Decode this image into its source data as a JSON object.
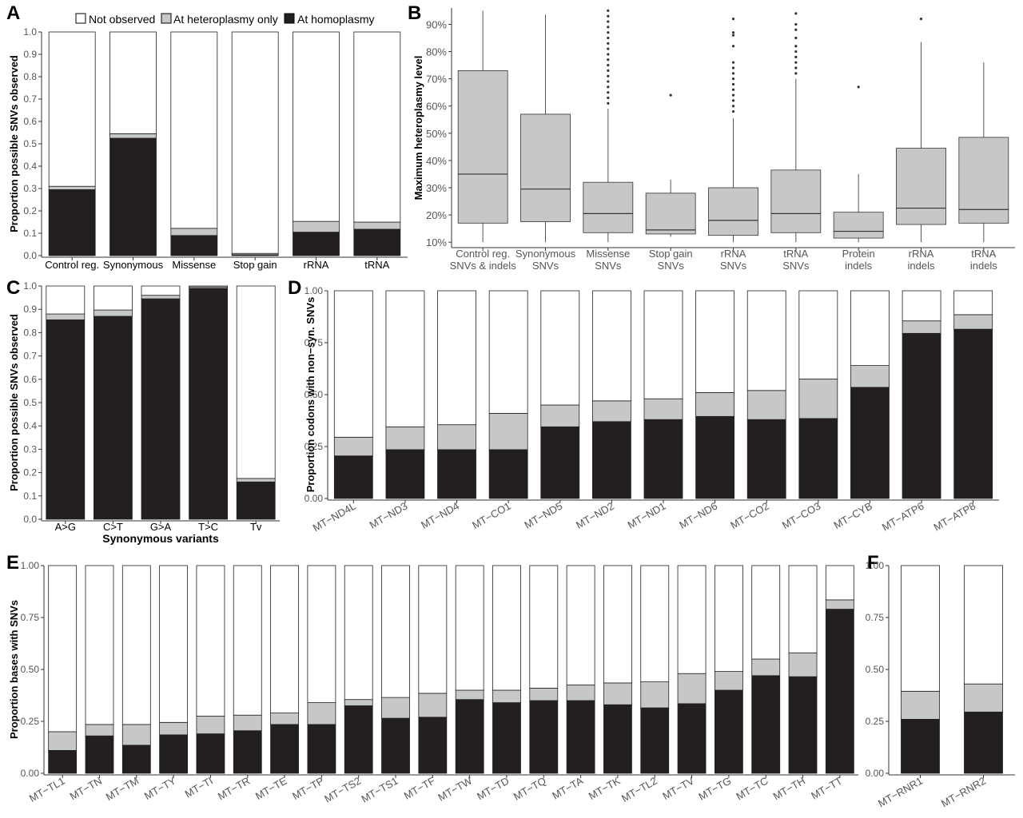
{
  "colors": {
    "not_observed": "#ffffff",
    "heteroplasmy": "#c6c7c9",
    "homoplasmy": "#231f20",
    "box_fill": "#c6c7c9",
    "axis": "#333333",
    "tick_text": "#555555"
  },
  "legend": {
    "items": [
      {
        "label": "Not observed",
        "color": "#ffffff"
      },
      {
        "label": "At heteroplasmy only",
        "color": "#c6c7c9"
      },
      {
        "label": "At homoplasmy",
        "color": "#231f20"
      }
    ]
  },
  "chart_data": [
    {
      "panel": "A",
      "type": "bar",
      "stacked": true,
      "ylabel": "Proportion possible SNVs observed",
      "xlabel": "",
      "ylim": [
        0,
        1
      ],
      "yticks": [
        "0.0",
        "0.1",
        "0.2",
        "0.3",
        "0.4",
        "0.5",
        "0.6",
        "0.7",
        "0.8",
        "0.9",
        "1.0"
      ],
      "categories": [
        "Control reg.",
        "Synonymous",
        "Missense",
        "Stop gain",
        "rRNA",
        "tRNA"
      ],
      "series": [
        {
          "name": "At homoplasmy",
          "values": [
            0.295,
            0.525,
            0.09,
            0.004,
            0.105,
            0.118
          ]
        },
        {
          "name": "At heteroplasmy only",
          "values": [
            0.015,
            0.02,
            0.032,
            0.006,
            0.048,
            0.032
          ]
        },
        {
          "name": "Not observed",
          "values": [
            0.69,
            0.455,
            0.878,
            0.99,
            0.847,
            0.85
          ]
        }
      ]
    },
    {
      "panel": "B",
      "type": "box",
      "ylabel": "Maximum heteroplasmy level",
      "xlabel": "",
      "ylim": [
        0.08,
        0.96
      ],
      "yticks": [
        "10%",
        "20%",
        "30%",
        "40%",
        "50%",
        "60%",
        "70%",
        "80%",
        "90%"
      ],
      "categories": [
        "Control reg.\nSNVs & indels",
        "Synonymous\nSNVs",
        "Missense\nSNVs",
        "Stop gain\nSNVs",
        "rRNA\nSNVs",
        "tRNA\nSNVs",
        "Protein\nindels",
        "rRNA\nindels",
        "tRNA\nindels"
      ],
      "boxes": [
        {
          "min": 0.1,
          "q1": 0.17,
          "median": 0.35,
          "q3": 0.73,
          "max": 0.95,
          "outliers": []
        },
        {
          "min": 0.1,
          "q1": 0.175,
          "median": 0.295,
          "q3": 0.57,
          "max": 0.935,
          "outliers": []
        },
        {
          "min": 0.1,
          "q1": 0.135,
          "median": 0.205,
          "q3": 0.32,
          "max": 0.59,
          "outliers": [
            0.61,
            0.63,
            0.65,
            0.67,
            0.69,
            0.71,
            0.73,
            0.75,
            0.77,
            0.79,
            0.81,
            0.83,
            0.85,
            0.87,
            0.89,
            0.91,
            0.93,
            0.95
          ]
        },
        {
          "min": 0.12,
          "q1": 0.13,
          "median": 0.145,
          "q3": 0.28,
          "max": 0.33,
          "outliers": [
            0.64
          ]
        },
        {
          "min": 0.1,
          "q1": 0.125,
          "median": 0.18,
          "q3": 0.3,
          "max": 0.555,
          "outliers": [
            0.58,
            0.6,
            0.62,
            0.64,
            0.66,
            0.68,
            0.7,
            0.72,
            0.74,
            0.76,
            0.82,
            0.86,
            0.87,
            0.92
          ]
        },
        {
          "min": 0.1,
          "q1": 0.135,
          "median": 0.205,
          "q3": 0.365,
          "max": 0.7,
          "outliers": [
            0.72,
            0.74,
            0.76,
            0.78,
            0.8,
            0.82,
            0.85,
            0.88,
            0.9,
            0.94
          ]
        },
        {
          "min": 0.1,
          "q1": 0.115,
          "median": 0.14,
          "q3": 0.21,
          "max": 0.35,
          "outliers": [
            0.67
          ]
        },
        {
          "min": 0.1,
          "q1": 0.165,
          "median": 0.225,
          "q3": 0.445,
          "max": 0.835,
          "outliers": [
            0.92
          ]
        },
        {
          "min": 0.1,
          "q1": 0.17,
          "median": 0.22,
          "q3": 0.485,
          "max": 0.76,
          "outliers": []
        }
      ]
    },
    {
      "panel": "C",
      "type": "bar",
      "stacked": true,
      "ylabel": "Proportion possible SNVs observed",
      "xlabel": "Synonymous variants",
      "ylim": [
        0,
        1
      ],
      "yticks": [
        "0.0",
        "0.1",
        "0.2",
        "0.3",
        "0.4",
        "0.5",
        "0.6",
        "0.7",
        "0.8",
        "0.9",
        "1.0"
      ],
      "categories": [
        "A>G",
        "C>T",
        "G>A",
        "T>C",
        "Tv"
      ],
      "series": [
        {
          "name": "At homoplasmy",
          "values": [
            0.855,
            0.87,
            0.945,
            0.99,
            0.16
          ]
        },
        {
          "name": "At heteroplasmy only",
          "values": [
            0.025,
            0.027,
            0.015,
            0.006,
            0.015
          ]
        },
        {
          "name": "Not observed",
          "values": [
            0.12,
            0.103,
            0.04,
            0.004,
            0.825
          ]
        }
      ]
    },
    {
      "panel": "D",
      "type": "bar",
      "stacked": true,
      "ylabel": "Proportion codons with non−syn. SNVs",
      "xlabel": "",
      "ylim": [
        0,
        1
      ],
      "yticks": [
        "0.00",
        "0.25",
        "0.50",
        "0.75",
        "1.00"
      ],
      "categories": [
        "MT−ND4L",
        "MT−ND3",
        "MT−ND4",
        "MT−CO1",
        "MT−ND5",
        "MT−ND2",
        "MT−ND1",
        "MT−ND6",
        "MT−CO2",
        "MT−CO3",
        "MT−CYB",
        "MT−ATP6",
        "MT−ATP8"
      ],
      "series": [
        {
          "name": "At homoplasmy",
          "values": [
            0.205,
            0.235,
            0.235,
            0.235,
            0.345,
            0.37,
            0.38,
            0.395,
            0.38,
            0.385,
            0.535,
            0.795,
            0.815
          ]
        },
        {
          "name": "At heteroplasmy only",
          "values": [
            0.09,
            0.11,
            0.12,
            0.175,
            0.105,
            0.1,
            0.1,
            0.115,
            0.14,
            0.19,
            0.105,
            0.06,
            0.07
          ]
        },
        {
          "name": "Not observed",
          "values": [
            0.705,
            0.655,
            0.645,
            0.59,
            0.55,
            0.53,
            0.52,
            0.49,
            0.48,
            0.425,
            0.36,
            0.145,
            0.115
          ]
        }
      ]
    },
    {
      "panel": "E",
      "type": "bar",
      "stacked": true,
      "ylabel": "Proportion bases with SNVs",
      "xlabel": "",
      "ylim": [
        0,
        1
      ],
      "yticks": [
        "0.00",
        "0.25",
        "0.50",
        "0.75",
        "1.00"
      ],
      "categories": [
        "MT−TL1",
        "MT−TN",
        "MT−TM",
        "MT−TY",
        "MT−TI",
        "MT−TR",
        "MT−TE",
        "MT−TP",
        "MT−TS2",
        "MT−TS1",
        "MT−TF",
        "MT−TW",
        "MT−TD",
        "MT−TQ",
        "MT−TA",
        "MT−TK",
        "MT−TL2",
        "MT−TV",
        "MT−TG",
        "MT−TC",
        "MT−TH",
        "MT−TT"
      ],
      "series": [
        {
          "name": "At homoplasmy",
          "values": [
            0.11,
            0.18,
            0.135,
            0.185,
            0.19,
            0.205,
            0.235,
            0.235,
            0.325,
            0.265,
            0.27,
            0.355,
            0.34,
            0.35,
            0.35,
            0.33,
            0.315,
            0.335,
            0.4,
            0.47,
            0.465,
            0.79
          ]
        },
        {
          "name": "At heteroplasmy only",
          "values": [
            0.09,
            0.055,
            0.1,
            0.06,
            0.085,
            0.075,
            0.055,
            0.105,
            0.03,
            0.1,
            0.115,
            0.045,
            0.06,
            0.06,
            0.075,
            0.105,
            0.125,
            0.145,
            0.09,
            0.08,
            0.115,
            0.045
          ]
        },
        {
          "name": "Not observed",
          "values": [
            0.8,
            0.765,
            0.765,
            0.755,
            0.725,
            0.72,
            0.71,
            0.66,
            0.645,
            0.635,
            0.615,
            0.6,
            0.6,
            0.59,
            0.575,
            0.565,
            0.56,
            0.52,
            0.51,
            0.45,
            0.42,
            0.165
          ]
        }
      ]
    },
    {
      "panel": "F",
      "type": "bar",
      "stacked": true,
      "ylabel": "",
      "xlabel": "",
      "ylim": [
        0,
        1
      ],
      "yticks": [
        "0.00",
        "0.25",
        "0.50",
        "0.75",
        "1.00"
      ],
      "categories": [
        "MT−RNR1",
        "MT−RNR2"
      ],
      "series": [
        {
          "name": "At homoplasmy",
          "values": [
            0.26,
            0.295
          ]
        },
        {
          "name": "At heteroplasmy only",
          "values": [
            0.135,
            0.135
          ]
        },
        {
          "name": "Not observed",
          "values": [
            0.605,
            0.57
          ]
        }
      ]
    }
  ]
}
